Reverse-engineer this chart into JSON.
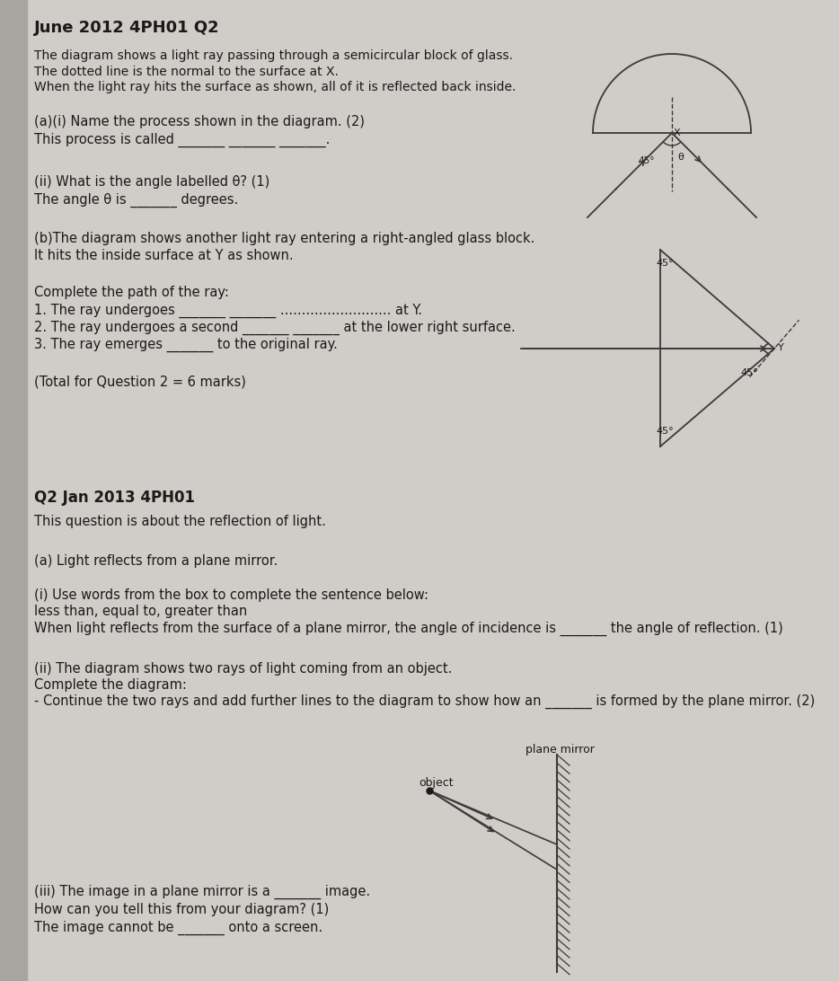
{
  "bg_color": "#d0ccc8",
  "text_color": "#1a1a1a",
  "line_color": "#3a3a3a",
  "title1": "June 2012 4PH01 Q2",
  "desc1_line1": "The diagram shows a light ray passing through a semicircular block of glass.",
  "desc1_line2": "The dotted line is the normal to the surface at X.",
  "desc1_line3": "When the light ray hits the surface as shown, all of it is reflected back inside.",
  "q_a_i": "(a)(i) Name the process shown in the diagram. (2)",
  "q_a_i_ans": "This process is called _______ _______ _______.",
  "q_a_ii": "(ii) What is the angle labelled θ? (1)",
  "q_a_ii_ans": "The angle θ is _______ degrees.",
  "q_b_1": "(b)The diagram shows another light ray entering a right-angled glass block.",
  "q_b_2": "It hits the inside surface at Y as shown.",
  "q_b_complete": "Complete the path of the ray:",
  "q_b_r1": "1. The ray undergoes _______ _______ .......................... at Y.",
  "q_b_r2": "2. The ray undergoes a second _______ _______ at the lower right surface.",
  "q_b_r3": "3. The ray emerges _______ to the original ray.",
  "q_total": "(Total for Question 2 = 6 marks)",
  "title2": "Q2 Jan 2013 4PH01",
  "desc2": "This question is about the reflection of light.",
  "q2_a": "(a) Light reflects from a plane mirror.",
  "q2_a_i_head": "(i) Use words from the box to complete the sentence below:",
  "q2_a_i_box": "less than, equal to, greater than",
  "q2_a_i_ans": "When light reflects from the surface of a plane mirror, the angle of incidence is _______ the angle of reflection. (1)",
  "q2_a_ii_1": "(ii) The diagram shows two rays of light coming from an object.",
  "q2_a_ii_2": "Complete the diagram:",
  "q2_a_ii_3": "- Continue the two rays and add further lines to the diagram to show how an _______ is formed by the plane mirror. (2)",
  "q2_a_iii_1": "(iii) The image in a plane mirror is a _______ image.",
  "q2_a_iii_2": "How can you tell this from your diagram? (1)",
  "q2_a_iii_3": "The image cannot be _______ onto a screen."
}
